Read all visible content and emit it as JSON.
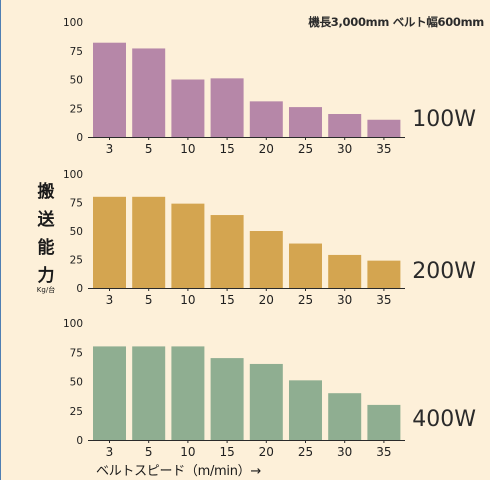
{
  "header": {
    "note": "機長3,000mm ベルト幅600mm"
  },
  "y_axis": {
    "label": "搬送能力",
    "unit": "Kg/台"
  },
  "x_axis": {
    "label": "ベルトスピード（m/min）→"
  },
  "colors": {
    "100W": "#b687a8",
    "200W": "#d4a550",
    "400W": "#8fae91",
    "background": "#fdf0d9"
  },
  "chart_data": [
    {
      "type": "bar",
      "series_label": "100W",
      "categories": [
        "3",
        "5",
        "10",
        "15",
        "20",
        "25",
        "30",
        "35"
      ],
      "values": [
        82,
        77,
        50,
        51,
        31,
        26,
        20,
        15
      ],
      "yticks": [
        "0",
        "25",
        "50",
        "75",
        "100"
      ],
      "ylim": [
        0,
        100
      ]
    },
    {
      "type": "bar",
      "series_label": "200W",
      "categories": [
        "3",
        "5",
        "10",
        "15",
        "20",
        "25",
        "30",
        "35"
      ],
      "values": [
        80,
        80,
        74,
        64,
        50,
        39,
        29,
        24
      ],
      "yticks": [
        "0",
        "25",
        "50",
        "75",
        "100"
      ],
      "ylim": [
        0,
        100
      ]
    },
    {
      "type": "bar",
      "series_label": "400W",
      "categories": [
        "3",
        "5",
        "10",
        "15",
        "20",
        "25",
        "30",
        "35"
      ],
      "values": [
        80,
        80,
        80,
        70,
        65,
        51,
        40,
        30
      ],
      "yticks": [
        "0",
        "25",
        "50",
        "75",
        "100"
      ],
      "ylim": [
        0,
        100
      ]
    }
  ]
}
